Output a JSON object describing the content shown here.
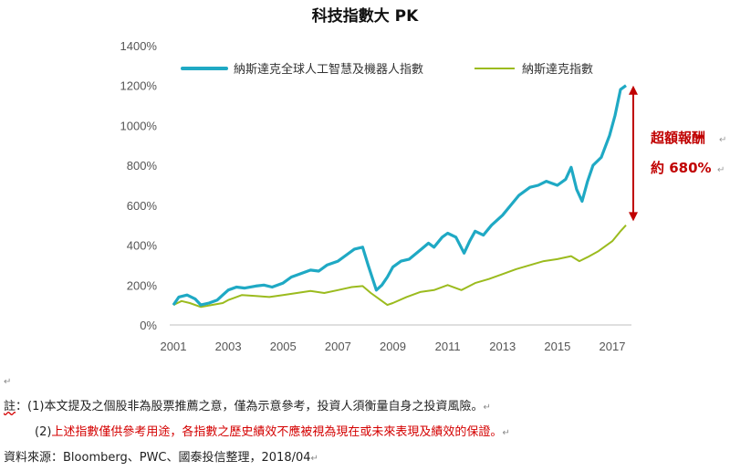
{
  "colors": {
    "robotics": "#1fa9c4",
    "nasdaq": "#9bbb1e",
    "annotation": "#c00000",
    "note_red": "#d40000"
  },
  "paragraph_mark": "↵",
  "chart_data": {
    "type": "line",
    "title": "科技指數大 PK",
    "xlabel": "",
    "ylabel": "",
    "xlim": [
      2001.0,
      2017.5
    ],
    "ylim": [
      0,
      1400
    ],
    "y_unit": "%",
    "x_ticks": [
      2001,
      2003,
      2005,
      2007,
      2009,
      2011,
      2013,
      2015,
      2017
    ],
    "y_ticks": [
      0,
      200,
      400,
      600,
      800,
      1000,
      1200,
      1400
    ],
    "y_tick_labels": [
      "0%",
      "200%",
      "400%",
      "600%",
      "800%",
      "1000%",
      "1200%",
      "1400%"
    ],
    "grid": false,
    "legend_position": "top",
    "series": [
      {
        "name": "納斯達克全球人工智慧及機器人指數",
        "color": "#1fa9c4",
        "x": [
          2001.0,
          2001.2,
          2001.5,
          2001.8,
          2002.0,
          2002.3,
          2002.6,
          2002.8,
          2003.0,
          2003.3,
          2003.6,
          2004.0,
          2004.3,
          2004.6,
          2005.0,
          2005.3,
          2005.6,
          2006.0,
          2006.3,
          2006.6,
          2007.0,
          2007.3,
          2007.6,
          2007.9,
          2008.1,
          2008.4,
          2008.6,
          2008.8,
          2009.0,
          2009.3,
          2009.6,
          2010.0,
          2010.3,
          2010.5,
          2010.8,
          2011.0,
          2011.3,
          2011.6,
          2011.8,
          2012.0,
          2012.3,
          2012.6,
          2013.0,
          2013.3,
          2013.6,
          2014.0,
          2014.3,
          2014.6,
          2015.0,
          2015.3,
          2015.5,
          2015.7,
          2015.9,
          2016.1,
          2016.3,
          2016.6,
          2016.9,
          2017.1,
          2017.3,
          2017.5
        ],
        "values": [
          100,
          140,
          150,
          130,
          100,
          110,
          125,
          150,
          175,
          190,
          185,
          195,
          200,
          190,
          210,
          240,
          255,
          275,
          270,
          300,
          320,
          350,
          380,
          390,
          300,
          175,
          200,
          240,
          290,
          320,
          330,
          375,
          410,
          390,
          440,
          460,
          440,
          360,
          420,
          470,
          450,
          500,
          550,
          600,
          650,
          690,
          700,
          720,
          700,
          730,
          790,
          680,
          620,
          720,
          800,
          840,
          950,
          1050,
          1180,
          1200
        ]
      },
      {
        "name": "納斯達克指數",
        "color": "#9bbb1e",
        "x": [
          2001.0,
          2001.3,
          2001.6,
          2002.0,
          2002.4,
          2002.8,
          2003.0,
          2003.5,
          2004.0,
          2004.5,
          2005.0,
          2005.5,
          2006.0,
          2006.5,
          2007.0,
          2007.5,
          2007.9,
          2008.2,
          2008.5,
          2008.8,
          2009.0,
          2009.5,
          2010.0,
          2010.5,
          2011.0,
          2011.5,
          2012.0,
          2012.5,
          2013.0,
          2013.5,
          2014.0,
          2014.5,
          2015.0,
          2015.5,
          2015.8,
          2016.1,
          2016.5,
          2017.0,
          2017.3,
          2017.5
        ],
        "values": [
          100,
          120,
          110,
          90,
          100,
          110,
          125,
          150,
          145,
          140,
          150,
          160,
          170,
          160,
          175,
          190,
          195,
          160,
          130,
          100,
          110,
          140,
          165,
          175,
          200,
          175,
          210,
          230,
          255,
          280,
          300,
          320,
          330,
          345,
          320,
          340,
          370,
          420,
          470,
          500
        ]
      }
    ],
    "annotation": {
      "lines": [
        "超額報酬",
        "約 680%"
      ],
      "arrow_from": 520,
      "arrow_to": 1200
    }
  },
  "notes": {
    "note1_label": "註",
    "note1_colon": "：",
    "note1_text": "(1)本文提及之個股非為股票推薦之意，僅為示意參考，投資人須衡量自身之投資風險。",
    "note2_num": "(2)",
    "note2_text": "上述指數僅供參考用途，各指數之歷史績效不應被視為現在或未來表現及績效的保證。",
    "source_label": "資料來源：",
    "source_text": "Bloomberg、PWC、國泰投信整理，2018/04"
  }
}
